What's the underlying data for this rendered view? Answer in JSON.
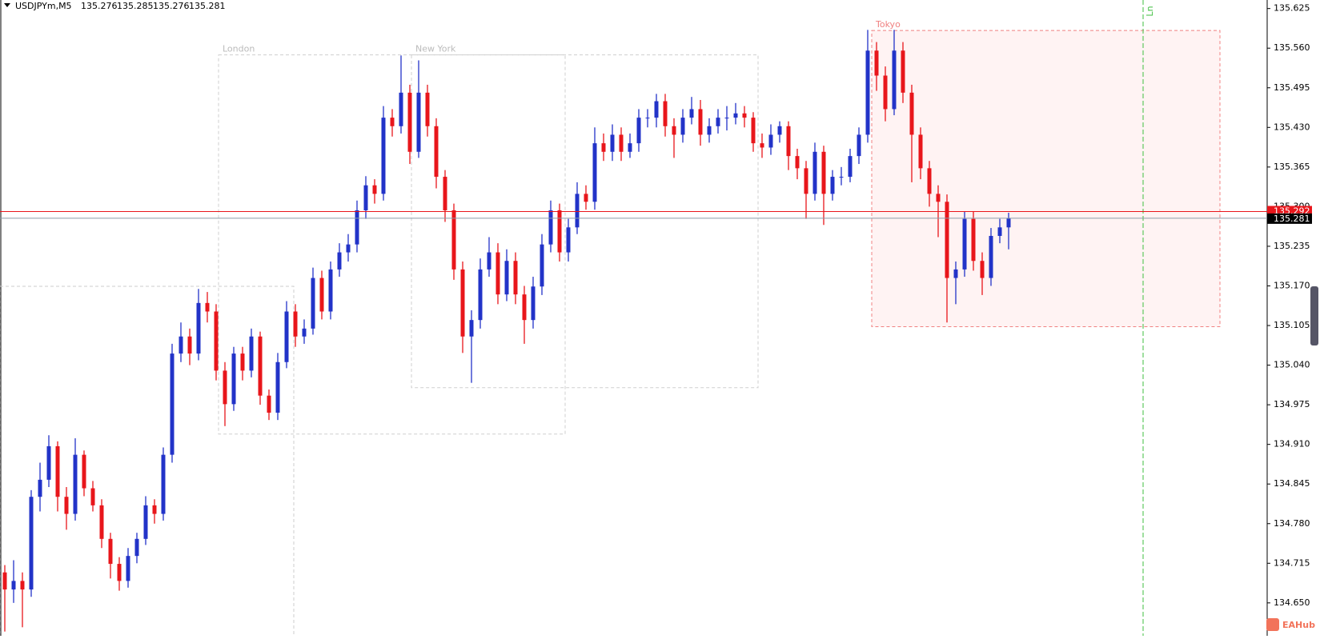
{
  "chart_data": {
    "type": "candlestick",
    "symbol": "USDJPYm,M5",
    "header_values": [
      135.276,
      135.285,
      135.276,
      135.281
    ],
    "up_color": "#2233c8",
    "down_color": "#e8161b",
    "ylim": [
      134.596,
      135.639
    ],
    "yticks": [
      135.625,
      {
        "value": 135.56,
        "label": "135.560"
      },
      135.495,
      {
        "value": 135.43,
        "label": "135.430"
      },
      135.365,
      {
        "value": 135.3,
        "label": "135.300"
      },
      135.235,
      {
        "value": 135.17,
        "label": "135.170"
      },
      135.105,
      {
        "value": 135.04,
        "label": "135.040"
      },
      134.975,
      {
        "value": 134.91,
        "label": "134.910"
      },
      134.845,
      {
        "value": 134.78,
        "label": "134.780"
      },
      134.715,
      {
        "value": 134.65,
        "label": "134.650"
      }
    ],
    "bid": 135.292,
    "last": 135.281,
    "sessions": [
      {
        "name": "London",
        "high": 135.549,
        "low": 134.927
      },
      {
        "name": "New York",
        "high": 135.549,
        "low": 135.003
      },
      {
        "name": "Tokyo",
        "high": 135.589,
        "low": 135.103
      }
    ],
    "line_label": "Ln",
    "watermark": "EAHub",
    "open": [
      134.7,
      134.672,
      134.686,
      134.672,
      134.824,
      134.852,
      134.907,
      134.824,
      134.796,
      134.893,
      134.838,
      134.81,
      134.755,
      134.714,
      134.686,
      134.727,
      134.755,
      134.81,
      134.796,
      134.893,
      135.059,
      135.087,
      135.059,
      135.142,
      135.128,
      135.031,
      134.976,
      135.059,
      135.031,
      135.087,
      134.99,
      134.962,
      135.045,
      135.128,
      135.087,
      135.1,
      135.183,
      135.128,
      135.197,
      135.225,
      135.238,
      135.294,
      135.335,
      135.321,
      135.446,
      135.432,
      135.487,
      135.39,
      135.487,
      135.432,
      135.349,
      135.294,
      135.197,
      135.087,
      135.114,
      135.197,
      135.225,
      135.156,
      135.211,
      135.156,
      135.114,
      135.169,
      135.238,
      135.294,
      135.225,
      135.266,
      135.321,
      135.308,
      135.404,
      135.39,
      135.418,
      135.39,
      135.404,
      135.446,
      135.446,
      135.473,
      135.432,
      135.418,
      135.446,
      135.46,
      135.418,
      135.432,
      135.446,
      135.446,
      135.453,
      135.446,
      135.404,
      135.397,
      135.418,
      135.432,
      135.383,
      135.363,
      135.321,
      135.39,
      135.321,
      135.349,
      135.349,
      135.383,
      135.418,
      135.556,
      135.515,
      135.46,
      135.556,
      135.487,
      135.418,
      135.363,
      135.321,
      135.308,
      135.183,
      135.197,
      135.28,
      135.211,
      135.183,
      135.252,
      135.266
    ],
    "high": [
      134.712,
      134.72,
      134.7,
      134.835,
      134.88,
      134.925,
      134.915,
      134.84,
      134.92,
      134.9,
      134.85,
      134.82,
      134.765,
      134.725,
      134.74,
      134.765,
      134.825,
      134.82,
      134.905,
      135.075,
      135.11,
      135.1,
      135.165,
      135.16,
      135.14,
      135.045,
      135.07,
      135.07,
      135.1,
      135.095,
      135.0,
      135.06,
      135.145,
      135.14,
      135.115,
      135.2,
      135.195,
      135.21,
      135.24,
      135.255,
      135.31,
      135.35,
      135.345,
      135.465,
      135.46,
      135.548,
      135.5,
      135.54,
      135.5,
      135.445,
      135.36,
      135.305,
      135.21,
      135.13,
      135.215,
      135.25,
      135.24,
      135.23,
      135.225,
      135.17,
      135.185,
      135.255,
      135.31,
      135.305,
      135.28,
      135.34,
      135.335,
      135.43,
      135.42,
      135.435,
      135.43,
      135.42,
      135.46,
      135.46,
      135.485,
      135.485,
      135.445,
      135.46,
      135.48,
      135.475,
      135.445,
      135.46,
      135.465,
      135.47,
      135.465,
      135.455,
      135.42,
      135.435,
      135.44,
      135.44,
      135.395,
      135.375,
      135.405,
      135.4,
      135.36,
      135.365,
      135.395,
      135.43,
      135.59,
      135.57,
      135.53,
      135.59,
      135.57,
      135.5,
      135.43,
      135.375,
      135.335,
      135.32,
      135.21,
      135.292,
      135.292,
      135.225,
      135.265,
      135.28,
      135.29
    ],
    "low": [
      134.603,
      134.65,
      134.61,
      134.66,
      134.8,
      134.84,
      134.8,
      134.77,
      134.785,
      134.825,
      134.8,
      134.74,
      134.69,
      134.67,
      134.675,
      134.715,
      134.745,
      134.78,
      134.785,
      134.88,
      135.045,
      135.04,
      135.048,
      135.11,
      135.015,
      134.94,
      134.965,
      135.015,
      135.02,
      134.975,
      134.95,
      134.95,
      135.035,
      135.07,
      135.075,
      135.09,
      135.115,
      135.115,
      135.185,
      135.21,
      135.225,
      135.28,
      135.305,
      135.31,
      135.415,
      135.42,
      135.37,
      135.38,
      135.415,
      135.33,
      135.275,
      135.18,
      135.06,
      135.011,
      135.1,
      135.185,
      135.14,
      135.145,
      135.14,
      135.075,
      135.1,
      135.155,
      135.225,
      135.21,
      135.21,
      135.255,
      135.295,
      135.295,
      135.375,
      135.375,
      135.375,
      135.38,
      135.39,
      135.43,
      135.43,
      135.415,
      135.38,
      135.405,
      135.435,
      135.4,
      135.405,
      135.42,
      135.425,
      135.435,
      135.43,
      135.39,
      135.38,
      135.385,
      135.405,
      135.36,
      135.345,
      135.28,
      135.31,
      135.27,
      135.31,
      135.335,
      135.34,
      135.37,
      135.405,
      135.49,
      135.44,
      135.45,
      135.47,
      135.34,
      135.345,
      135.3,
      135.25,
      135.11,
      135.14,
      135.185,
      135.195,
      135.155,
      135.17,
      135.24,
      135.23
    ],
    "close": [
      134.672,
      134.686,
      134.672,
      134.824,
      134.852,
      134.907,
      134.824,
      134.796,
      134.893,
      134.838,
      134.81,
      134.755,
      134.714,
      134.686,
      134.727,
      134.755,
      134.81,
      134.796,
      134.893,
      135.059,
      135.087,
      135.059,
      135.142,
      135.128,
      135.031,
      134.976,
      135.059,
      135.031,
      135.087,
      134.99,
      134.962,
      135.045,
      135.128,
      135.087,
      135.1,
      135.183,
      135.128,
      135.197,
      135.225,
      135.238,
      135.294,
      135.335,
      135.321,
      135.446,
      135.432,
      135.487,
      135.39,
      135.487,
      135.432,
      135.349,
      135.294,
      135.197,
      135.087,
      135.114,
      135.197,
      135.225,
      135.156,
      135.211,
      135.156,
      135.114,
      135.169,
      135.238,
      135.294,
      135.225,
      135.266,
      135.321,
      135.308,
      135.404,
      135.39,
      135.418,
      135.39,
      135.404,
      135.446,
      135.446,
      135.473,
      135.432,
      135.418,
      135.446,
      135.46,
      135.418,
      135.432,
      135.446,
      135.446,
      135.453,
      135.446,
      135.404,
      135.397,
      135.418,
      135.432,
      135.383,
      135.363,
      135.321,
      135.39,
      135.321,
      135.349,
      135.349,
      135.383,
      135.418,
      135.556,
      135.515,
      135.46,
      135.556,
      135.487,
      135.418,
      135.363,
      135.321,
      135.308,
      135.183,
      135.197,
      135.28,
      135.211,
      135.183,
      135.252,
      135.266,
      135.281
    ]
  }
}
